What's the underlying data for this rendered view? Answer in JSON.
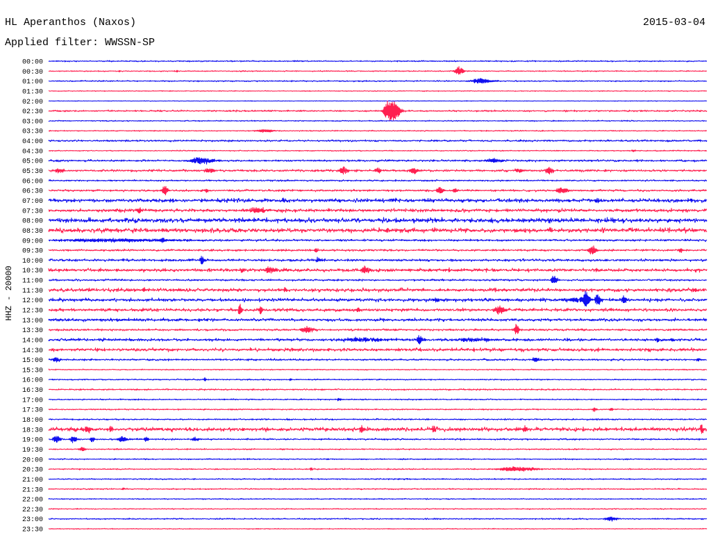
{
  "chart_data": {
    "type": "line",
    "title": "HL Aperanthos (Naxos)",
    "date": "2015-03-04",
    "subtitle": "Applied filter: WWSSN-SP",
    "ylabel": "HHZ - 20000",
    "xlabel": "",
    "grid": false,
    "legend": "none",
    "color_cycle": [
      "#1010f0",
      "#ff2050"
    ],
    "traces": [
      {
        "label": "00:00",
        "noise": 0.6,
        "events": []
      },
      {
        "label": "00:30",
        "noise": 0.5,
        "events": [
          [
            "00:33:14",
            1.5,
            4
          ],
          [
            "00:35:51",
            1.5,
            4
          ],
          [
            "00:48:40",
            6,
            20
          ]
        ]
      },
      {
        "label": "01:00",
        "noise": 0.6,
        "events": [
          [
            "01:19:37",
            3.5,
            50
          ]
        ]
      },
      {
        "label": "01:30",
        "noise": 0.4,
        "events": []
      },
      {
        "label": "02:00",
        "noise": 0.3,
        "events": []
      },
      {
        "label": "02:30",
        "noise": 0.8,
        "events": [
          [
            "02:45:27",
            14,
            22
          ],
          [
            "02:45:46",
            13,
            22
          ]
        ]
      },
      {
        "label": "03:00",
        "noise": 0.5,
        "events": []
      },
      {
        "label": "03:30",
        "noise": 0.5,
        "events": [
          [
            "03:39:49",
            2,
            40
          ]
        ]
      },
      {
        "label": "04:00",
        "noise": 0.9,
        "events": []
      },
      {
        "label": "04:30",
        "noise": 0.5,
        "events": [
          [
            "04:56:39",
            1.5,
            10
          ]
        ]
      },
      {
        "label": "05:00",
        "noise": 1.0,
        "events": [
          [
            "05:06:52",
            4.5,
            55
          ],
          [
            "05:20:15",
            2.5,
            40
          ]
        ]
      },
      {
        "label": "05:30",
        "noise": 1.1,
        "events": [
          [
            "05:30:28",
            3,
            20
          ],
          [
            "05:37:17",
            3,
            25
          ],
          [
            "05:43:25",
            5,
            20
          ],
          [
            "05:45:02",
            3,
            15
          ],
          [
            "05:46:37",
            4,
            20
          ],
          [
            "05:51:22",
            3,
            20
          ],
          [
            "05:52:47",
            6,
            15
          ]
        ]
      },
      {
        "label": "06:00",
        "noise": 0.8,
        "events": []
      },
      {
        "label": "06:30",
        "noise": 1.0,
        "events": [
          [
            "06:35:17",
            7,
            15
          ],
          [
            "06:37:11",
            3,
            10
          ],
          [
            "06:47:49",
            5,
            15
          ],
          [
            "06:48:30",
            2.5,
            10
          ],
          [
            "06:53:21",
            4,
            30
          ]
        ]
      },
      {
        "label": "07:00",
        "noise": 1.8,
        "events": [
          [
            "07:10:42",
            3,
            15
          ],
          [
            "07:15:40",
            2.5,
            20
          ],
          [
            "07:25:00",
            3,
            15
          ]
        ]
      },
      {
        "label": "07:30",
        "noise": 1.6,
        "events": [
          [
            "07:34:07",
            4,
            10
          ],
          [
            "07:39:30",
            3,
            50
          ],
          [
            "07:41:14",
            3,
            5
          ]
        ]
      },
      {
        "label": "08:00",
        "noise": 2.2,
        "events": []
      },
      {
        "label": "08:30",
        "noise": 2.2,
        "events": []
      },
      {
        "label": "09:00",
        "noise": 1.0,
        "events": [
          [
            "09:02:42",
            2,
            300
          ],
          [
            "09:05:10",
            3,
            8
          ]
        ]
      },
      {
        "label": "09:30",
        "noise": 1.0,
        "events": [
          [
            "09:42:11",
            3,
            8
          ],
          [
            "09:54:45",
            6,
            20
          ],
          [
            "09:58:48",
            3,
            8
          ]
        ]
      },
      {
        "label": "10:00",
        "noise": 1.2,
        "events": [
          [
            "10:06:58",
            7,
            10
          ],
          [
            "10:12:17",
            3,
            10
          ]
        ]
      },
      {
        "label": "10:30",
        "noise": 1.6,
        "events": [
          [
            "10:38:48",
            4,
            10
          ],
          [
            "10:40:04",
            4,
            30
          ],
          [
            "10:44:24",
            5,
            20
          ],
          [
            "10:48:16",
            3,
            5
          ],
          [
            "10:49:56",
            3,
            5
          ]
        ]
      },
      {
        "label": "11:00",
        "noise": 0.9,
        "events": [
          [
            "11:23:01",
            7,
            12
          ]
        ]
      },
      {
        "label": "11:30",
        "noise": 1.7,
        "events": [
          [
            "11:34:20",
            3,
            8
          ],
          [
            "11:40:46",
            3,
            8
          ],
          [
            "11:59:26",
            3,
            15
          ]
        ]
      },
      {
        "label": "12:00",
        "noise": 1.6,
        "events": [
          [
            "12:17:40",
            3,
            20
          ],
          [
            "12:24:03",
            3,
            60
          ],
          [
            "12:24:28",
            12,
            12
          ],
          [
            "12:25:00",
            8,
            12
          ],
          [
            "12:26:13",
            7,
            12
          ]
        ]
      },
      {
        "label": "12:30",
        "noise": 1.5,
        "events": [
          [
            "12:34:16",
            3,
            8
          ],
          [
            "12:38:42",
            10,
            8
          ],
          [
            "12:39:39",
            5,
            10
          ],
          [
            "12:44:05",
            4,
            8
          ],
          [
            "12:50:31",
            6,
            25
          ]
        ]
      },
      {
        "label": "13:00",
        "noise": 1.5,
        "events": []
      },
      {
        "label": "13:30",
        "noise": 1.0,
        "events": [
          [
            "13:41:43",
            4,
            30
          ],
          [
            "13:51:18",
            8,
            12
          ]
        ]
      },
      {
        "label": "14:00",
        "noise": 1.3,
        "events": [
          [
            "14:14:15",
            2.5,
            120
          ],
          [
            "14:16:54",
            6,
            15
          ],
          [
            "14:19:18",
            2.5,
            80
          ],
          [
            "14:27:42",
            4,
            8
          ],
          [
            "14:28:25",
            3,
            8
          ]
        ]
      },
      {
        "label": "14:30",
        "noise": 1.6,
        "events": []
      },
      {
        "label": "15:00",
        "noise": 0.9,
        "events": [
          [
            "15:00:19",
            3,
            20
          ],
          [
            "15:22:09",
            3,
            20
          ],
          [
            "15:29:36",
            2,
            10
          ]
        ]
      },
      {
        "label": "15:30",
        "noise": 0.5,
        "events": []
      },
      {
        "label": "16:00",
        "noise": 0.6,
        "events": [
          [
            "16:07:07",
            3,
            5
          ],
          [
            "16:11:01",
            2,
            5
          ]
        ]
      },
      {
        "label": "16:30",
        "noise": 0.7,
        "events": []
      },
      {
        "label": "17:00",
        "noise": 0.6,
        "events": [
          [
            "17:13:14",
            2,
            10
          ]
        ]
      },
      {
        "label": "17:30",
        "noise": 0.6,
        "events": [
          [
            "17:54:51",
            3,
            10
          ],
          [
            "17:55:38",
            2,
            8
          ]
        ]
      },
      {
        "label": "18:00",
        "noise": 0.7,
        "events": []
      },
      {
        "label": "18:30",
        "noise": 2.0,
        "events": [
          [
            "18:31:44",
            5,
            15
          ],
          [
            "18:32:51",
            4,
            10
          ],
          [
            "18:44:15",
            4,
            15
          ],
          [
            "18:47:34",
            4,
            10
          ],
          [
            "18:51:41",
            5,
            10
          ],
          [
            "18:59:45",
            6,
            8
          ]
        ]
      },
      {
        "label": "19:00",
        "noise": 0.8,
        "events": [
          [
            "19:00:19",
            5,
            20
          ],
          [
            "19:01:07",
            5,
            15
          ],
          [
            "19:01:58",
            4,
            10
          ],
          [
            "19:03:19",
            4,
            20
          ],
          [
            "19:04:26",
            3,
            10
          ],
          [
            "19:06:39",
            3,
            15
          ]
        ]
      },
      {
        "label": "19:30",
        "noise": 0.6,
        "events": [
          [
            "19:31:31",
            3,
            15
          ]
        ]
      },
      {
        "label": "20:00",
        "noise": 0.6,
        "events": []
      },
      {
        "label": "20:30",
        "noise": 0.6,
        "events": [
          [
            "20:41:58",
            3,
            5
          ],
          [
            "20:51:12",
            3,
            90
          ]
        ]
      },
      {
        "label": "21:00",
        "noise": 0.6,
        "events": []
      },
      {
        "label": "21:30",
        "noise": 0.6,
        "events": [
          [
            "21:33:25",
            2,
            8
          ]
        ]
      },
      {
        "label": "22:00",
        "noise": 0.5,
        "events": []
      },
      {
        "label": "22:30",
        "noise": 0.5,
        "events": []
      },
      {
        "label": "23:00",
        "noise": 0.6,
        "events": [
          [
            "23:25:34",
            3,
            30
          ]
        ]
      },
      {
        "label": "23:30",
        "noise": 0.4,
        "events": []
      }
    ]
  }
}
